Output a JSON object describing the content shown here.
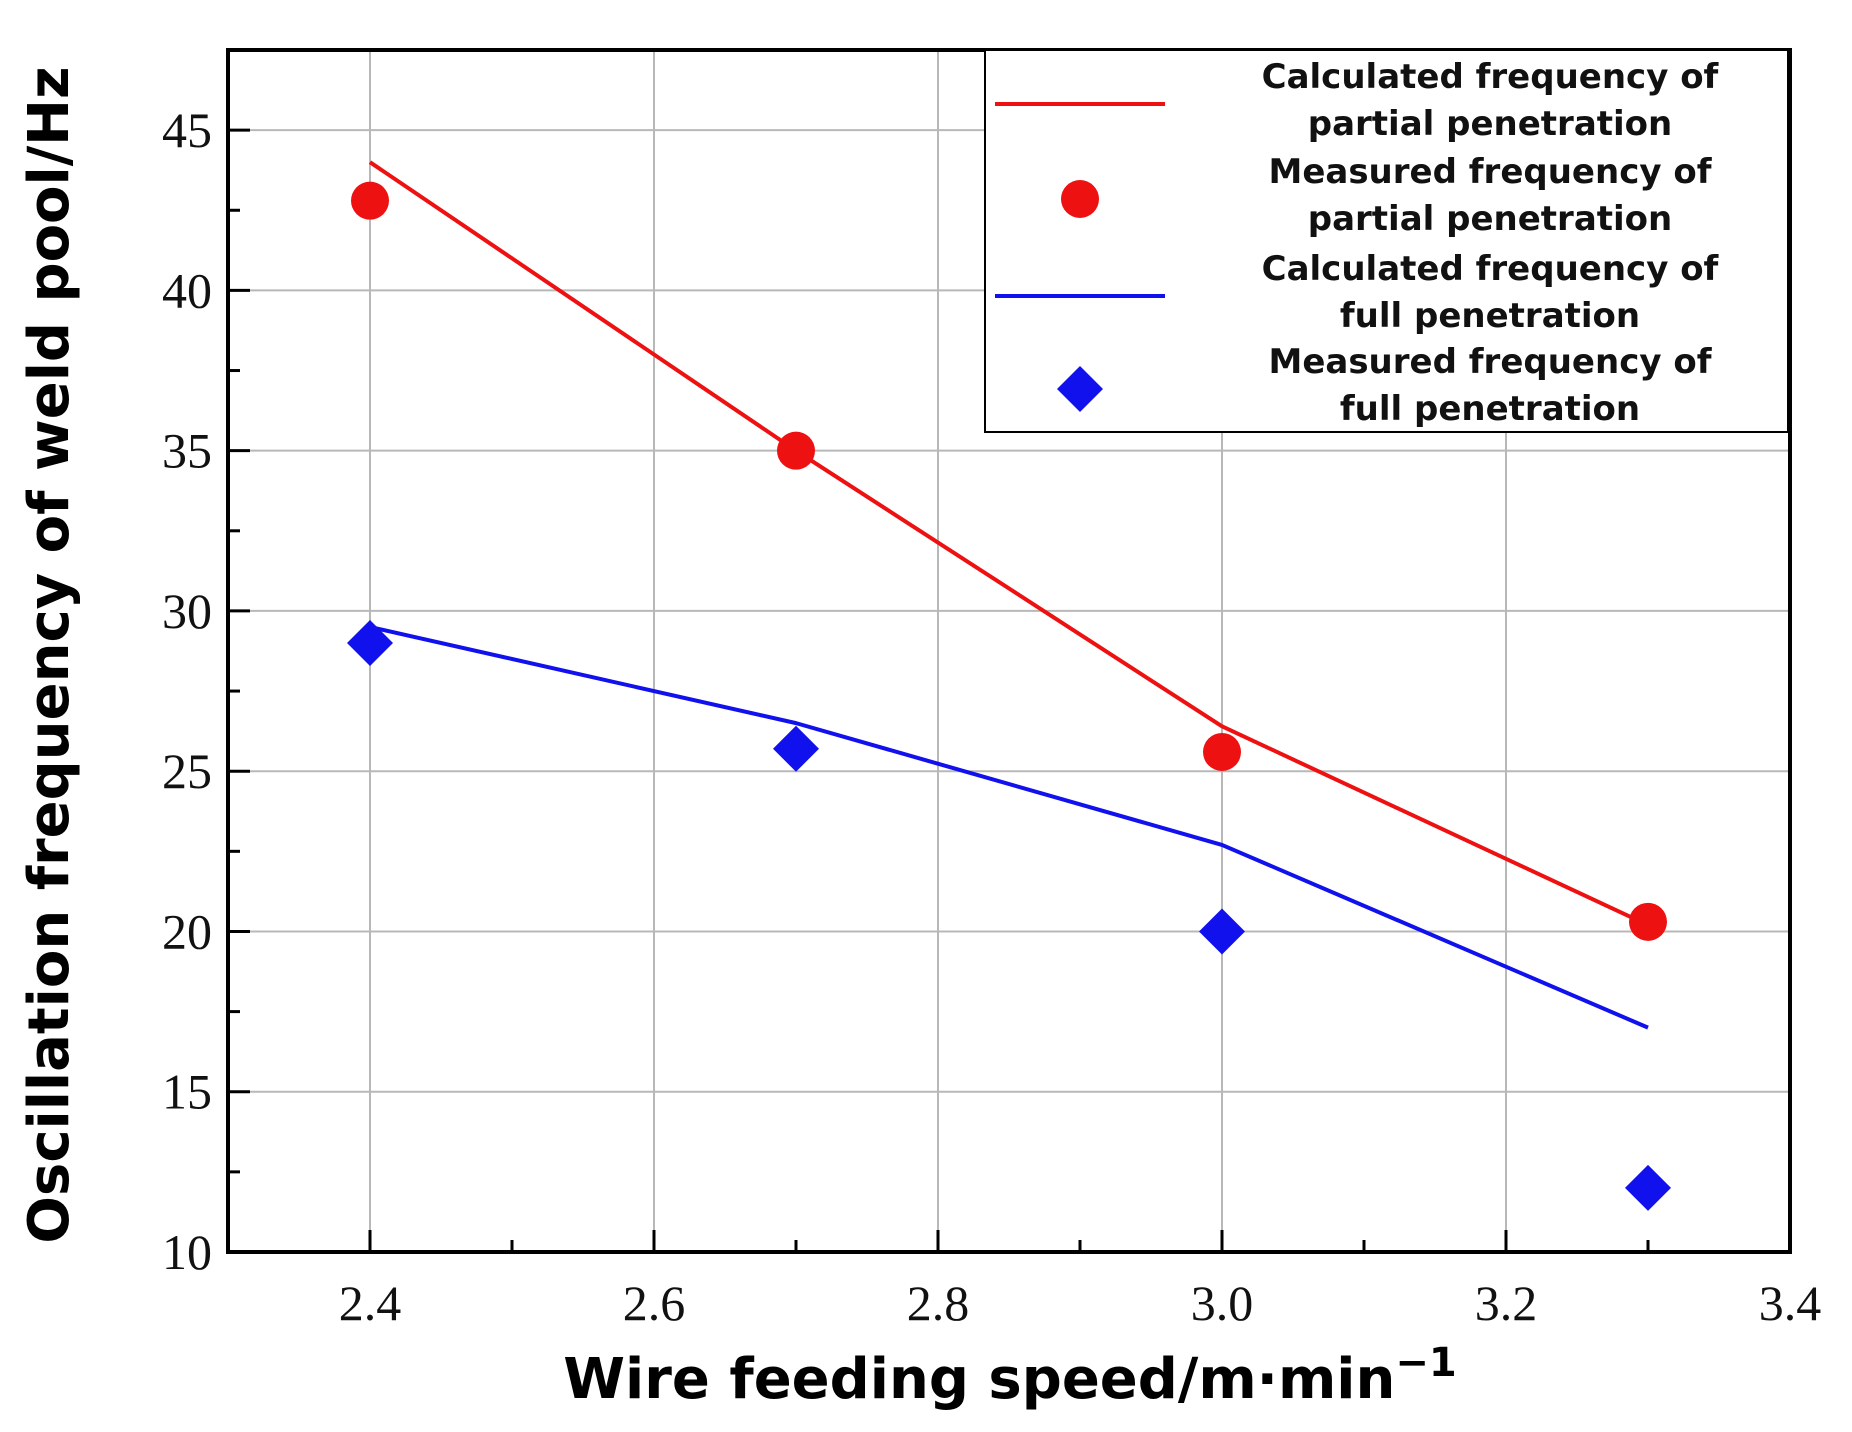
{
  "chart_data": {
    "type": "line",
    "title": "",
    "xlabel": "Wire feeding speed/m·min",
    "xlabel_superscript": "−1",
    "ylabel": "Oscillation frequency of weld pool/Hz",
    "xlim": [
      2.3,
      3.4
    ],
    "ylim": [
      10,
      47.5
    ],
    "x_ticks": [
      "2.4",
      "2.6",
      "2.8",
      "3.0",
      "3.2",
      "3.4"
    ],
    "x_tick_values": [
      2.4,
      2.6,
      2.8,
      3.0,
      3.2,
      3.4
    ],
    "y_ticks": [
      "10",
      "15",
      "20",
      "25",
      "30",
      "35",
      "40",
      "45"
    ],
    "y_tick_values": [
      10,
      15,
      20,
      25,
      30,
      35,
      40,
      45
    ],
    "grid": true,
    "legend_position": "top-right",
    "series": [
      {
        "name": "Calculated frequency of partial penetration",
        "legend_lines": [
          "Calculated frequency of",
          "partial penetration"
        ],
        "kind": "line",
        "color": "#ee1111",
        "x": [
          2.4,
          2.7,
          3.0,
          3.3
        ],
        "y": [
          44.0,
          35.0,
          26.4,
          20.2
        ]
      },
      {
        "name": "Measured frequency of partial penetration",
        "legend_lines": [
          "Measured frequency of",
          "partial penetration"
        ],
        "kind": "scatter",
        "marker": "circle",
        "color": "#ee1111",
        "x": [
          2.4,
          2.7,
          3.0,
          3.3
        ],
        "y": [
          42.8,
          35.0,
          25.6,
          20.3
        ]
      },
      {
        "name": "Calculated frequency of full penetration",
        "legend_lines": [
          "Calculated frequency of",
          "full penetration"
        ],
        "kind": "line",
        "color": "#1111ee",
        "x": [
          2.4,
          2.7,
          3.0,
          3.3
        ],
        "y": [
          29.5,
          26.5,
          22.7,
          17.0
        ]
      },
      {
        "name": "Measured frequency of full penetration",
        "legend_lines": [
          "Measured frequency of",
          "full penetration"
        ],
        "kind": "scatter",
        "marker": "diamond",
        "color": "#1111ee",
        "x": [
          2.4,
          2.7,
          3.0,
          3.3
        ],
        "y": [
          29.0,
          25.7,
          20.0,
          12.0
        ]
      }
    ]
  }
}
